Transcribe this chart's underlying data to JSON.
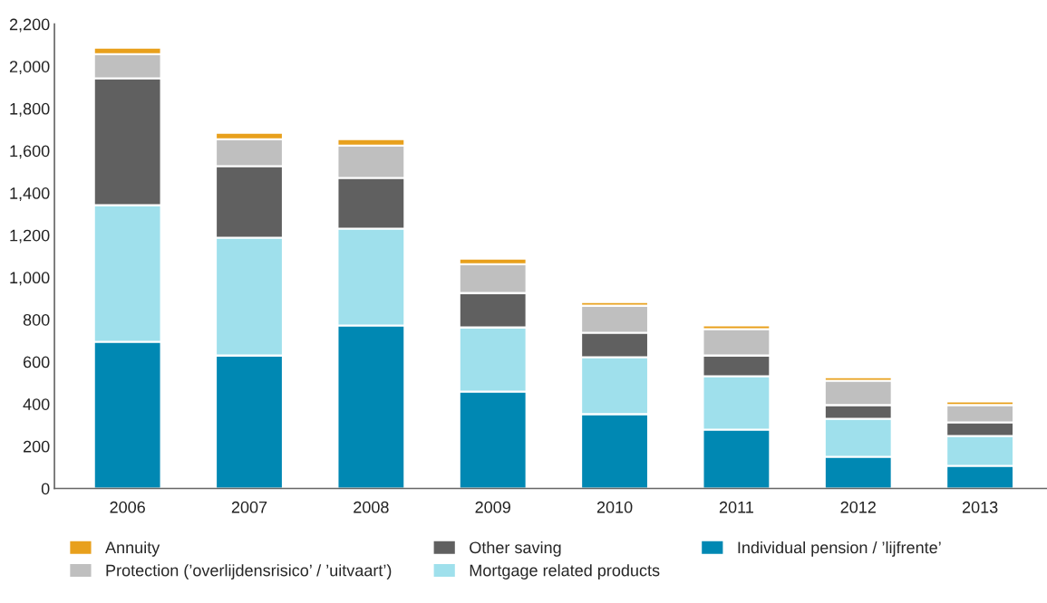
{
  "chart_data": {
    "type": "bar",
    "stacked": true,
    "categories": [
      "2006",
      "2007",
      "2008",
      "2009",
      "2010",
      "2011",
      "2012",
      "2013"
    ],
    "series": [
      {
        "name": "Individual pension / ’lijfrente’",
        "color": "#0088b3",
        "values": [
          695,
          630,
          772,
          459,
          352,
          279,
          150,
          107
        ]
      },
      {
        "name": "Mortgage related products",
        "color": "#9fe0ec",
        "values": [
          647,
          558,
          459,
          304,
          270,
          253,
          180,
          142
        ]
      },
      {
        "name": "Other saving",
        "color": "#606060",
        "values": [
          601,
          339,
          240,
          163,
          116,
          98,
          65,
          64
        ]
      },
      {
        "name": "Protection (’overlijdensrisico’ / ’uitvaart’)",
        "color": "#bfbfbf",
        "values": [
          115,
          128,
          154,
          137,
          128,
          125,
          115,
          82
        ]
      },
      {
        "name": "Annuity",
        "color": "#e8a01c",
        "values": [
          30,
          30,
          30,
          26,
          17,
          17,
          17,
          17
        ]
      }
    ],
    "ylim": [
      0,
      2200
    ],
    "yticks": [
      0,
      200,
      400,
      600,
      800,
      {
        "value": 1000,
        "label": "1,000"
      },
      {
        "value": 1200,
        "label": "1,200"
      },
      {
        "value": 1400,
        "label": "1,400"
      },
      {
        "value": 1600,
        "label": "1,600"
      },
      {
        "value": 1800,
        "label": "1,800"
      },
      {
        "value": 2000,
        "label": "2,000"
      },
      {
        "value": 2200,
        "label": "2,200"
      }
    ],
    "grid": false,
    "legend": "bottom"
  }
}
